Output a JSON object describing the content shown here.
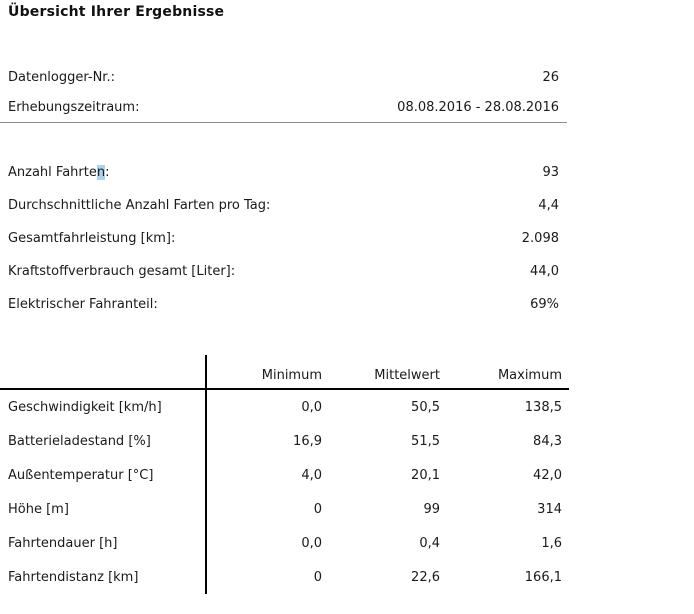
{
  "page": {
    "title": "Übersicht Ihrer Ergebnisse"
  },
  "colors": {
    "selection_highlight": "#aed2ec",
    "table_line": "#000000"
  },
  "summary_top": {
    "rows": [
      {
        "label": "Datenlogger-Nr.:",
        "value": "26"
      },
      {
        "label": "Erhebungszeitraum:",
        "value": "08.08.2016 - 28.08.2016"
      }
    ]
  },
  "summary_stats": {
    "anzahl_fahrten": {
      "label_prefix": "Anzahl Fahrte",
      "label_highlight": "n",
      "label_suffix": ":",
      "value": "93"
    },
    "rows": [
      {
        "label": "Durchschnittliche Anzahl Farten pro Tag:",
        "value": "4,4"
      },
      {
        "label": "Gesamtfahrleistung [km]:",
        "value": "2.098"
      },
      {
        "label": "Kraftstoffverbrauch gesamt [Liter]:",
        "value": "44,0"
      },
      {
        "label": "Elektrischer Fahranteil:",
        "value": "69%"
      }
    ]
  },
  "table": {
    "headers": [
      "Minimum",
      "Mittelwert",
      "Maximum"
    ],
    "rows": [
      {
        "label": "Geschwindigkeit [km/h]",
        "min": "0,0",
        "mittel": "50,5",
        "max": "138,5"
      },
      {
        "label": "Batterieladestand [%]",
        "min": "16,9",
        "mittel": "51,5",
        "max": "84,3"
      },
      {
        "label": "Außentemperatur [°C]",
        "min": "4,0",
        "mittel": "20,1",
        "max": "42,0"
      },
      {
        "label": "Höhe [m]",
        "min": "0",
        "mittel": "99",
        "max": "314"
      },
      {
        "label": "Fahrtendauer [h]",
        "min": "0,0",
        "mittel": "0,4",
        "max": "1,6"
      },
      {
        "label": "Fahrtendistanz [km]",
        "min": "0",
        "mittel": "22,6",
        "max": "166,1"
      }
    ]
  }
}
